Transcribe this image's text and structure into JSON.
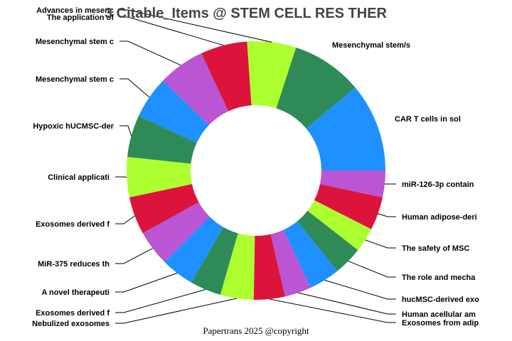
{
  "chart_data": {
    "type": "pie",
    "donut": true,
    "title": "3 Citable_Items @ STEM CELL RES THER",
    "start": "3 o'clock, counterclockwise",
    "colors": [
      "#1E90FF",
      "#2E8B57",
      "#ADFF2F",
      "#DC143C",
      "#BA55D3"
    ],
    "slices": [
      {
        "label": "CAR T cells in sol",
        "value": 40
      },
      {
        "label": "Mesenchymal stem/s",
        "value": 32
      },
      {
        "label": "Advances in mesenc",
        "value": 22
      },
      {
        "label": "The application of",
        "value": 21
      },
      {
        "label": "Mesenchymal stem c",
        "value": 21
      },
      {
        "label": "Mesenchymal stem c",
        "value": 19
      },
      {
        "label": "Hypoxic hUCMSC-der",
        "value": 19
      },
      {
        "label": "Clinical applicati",
        "value": 18
      },
      {
        "label": "Exosomes derived f",
        "value": 17
      },
      {
        "label": "MiR-375 reduces th",
        "value": 16
      },
      {
        "label": "A novel therapeuti",
        "value": 15
      },
      {
        "label": "Exosomes derived f",
        "value": 14
      },
      {
        "label": "Nebulized exosomes",
        "value": 15
      },
      {
        "label": "Exosomes from adip",
        "value": 14
      },
      {
        "label": "Human acellular am",
        "value": 12
      },
      {
        "label": "hucMSC-derived exo",
        "value": 14
      },
      {
        "label": "The role and mecha",
        "value": 13
      },
      {
        "label": "The safety of MSC",
        "value": 11
      },
      {
        "label": "Human adipose-deri",
        "value": 15
      },
      {
        "label": "miR-126-3p contain",
        "value": 12
      }
    ]
  },
  "footer": "Papertrans 2025 @copyright"
}
